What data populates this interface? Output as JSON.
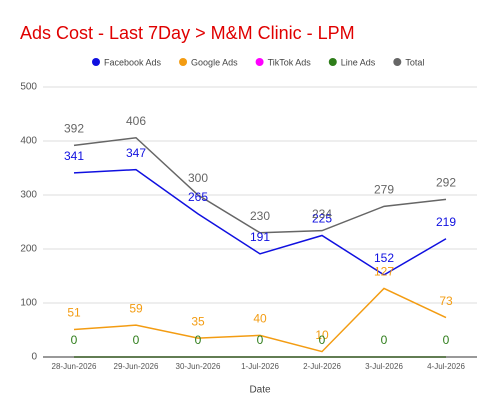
{
  "chart_data": {
    "type": "line",
    "title": "Ads Cost - Last 7Day > M&M Clinic - LPM",
    "x_label": "Date",
    "categories": [
      "28-Jun-2026",
      "29-Jun-2026",
      "30-Jun-2026",
      "1-Jul-2026",
      "2-Jul-2026",
      "3-Jul-2026",
      "4-Jul-2026"
    ],
    "series": [
      {
        "name": "Facebook Ads",
        "color": "#1010e0",
        "show_labels": true,
        "values": [
          341,
          347,
          265,
          191,
          225,
          152,
          219
        ]
      },
      {
        "name": "Google Ads",
        "color": "#f39c12",
        "show_labels": true,
        "values": [
          51,
          59,
          35,
          40,
          10,
          127,
          73
        ]
      },
      {
        "name": "TikTok Ads",
        "color": "#ff00ff",
        "show_labels": false,
        "values": [
          0,
          0,
          0,
          0,
          0,
          0,
          0
        ]
      },
      {
        "name": "Line Ads",
        "color": "#2e7d1a",
        "show_labels": true,
        "values": [
          0,
          0,
          0,
          0,
          0,
          0,
          0
        ]
      },
      {
        "name": "Total",
        "color": "#666666",
        "show_labels": true,
        "values": [
          392,
          406,
          300,
          230,
          234,
          279,
          292
        ]
      }
    ],
    "ylim": [
      0,
      500
    ],
    "yticks": [
      0,
      100,
      200,
      300,
      400,
      500
    ],
    "grid": true
  }
}
